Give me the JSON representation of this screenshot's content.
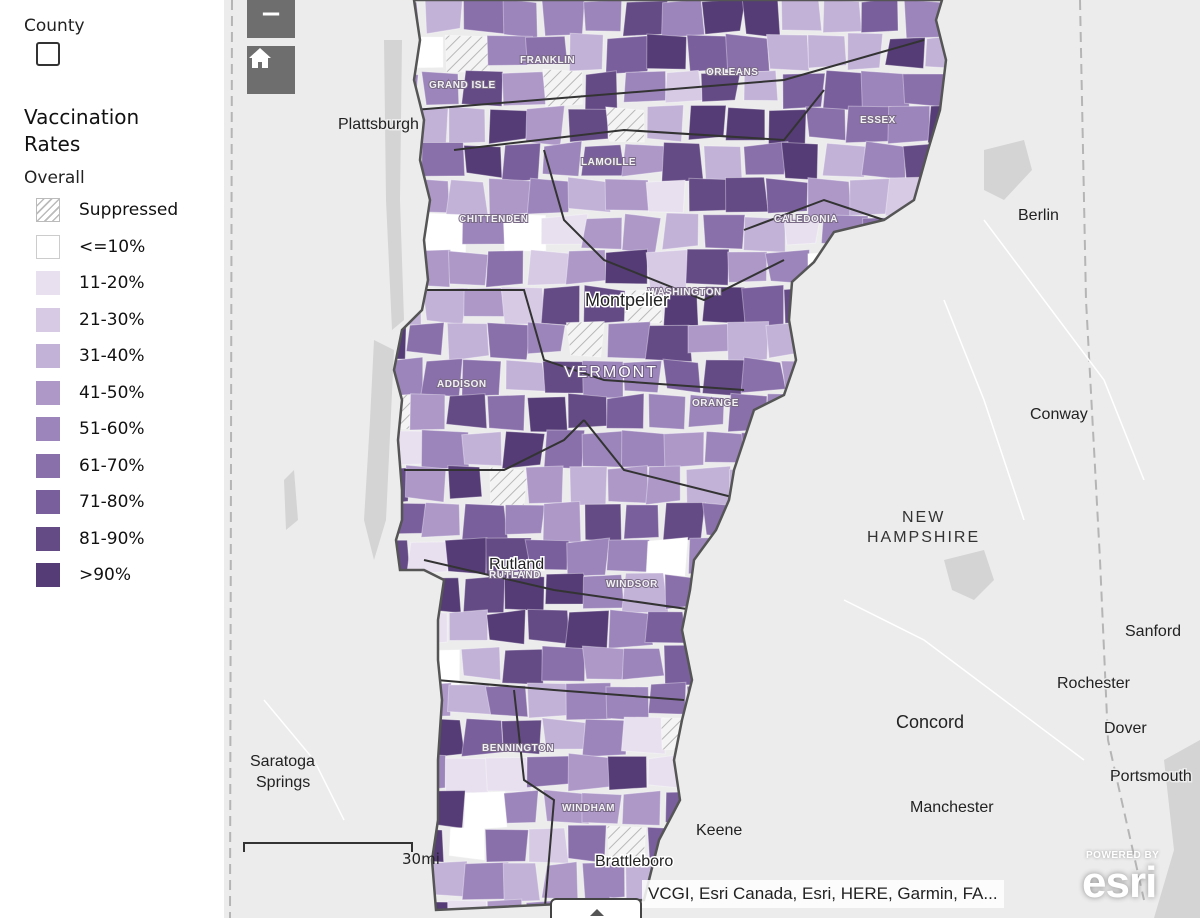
{
  "legend": {
    "layer_label": "County",
    "title": "Vaccination Rates",
    "subtitle": "Overall",
    "items": [
      {
        "label": "Suppressed",
        "color": "hatch"
      },
      {
        "label": "<=10%",
        "color": "#ffffff"
      },
      {
        "label": "11-20%",
        "color": "#e8e0ef"
      },
      {
        "label": "21-30%",
        "color": "#d6cae4"
      },
      {
        "label": "31-40%",
        "color": "#c2b2d7"
      },
      {
        "label": "41-50%",
        "color": "#ad98c8"
      },
      {
        "label": "51-60%",
        "color": "#9c85bb"
      },
      {
        "label": "61-70%",
        "color": "#8a70ab"
      },
      {
        "label": "71-80%",
        "color": "#7a5f9d"
      },
      {
        "label": "81-90%",
        "color": "#654b86"
      },
      {
        "label": ">90%",
        "color": "#553c76"
      }
    ]
  },
  "map": {
    "state_label": "VERMONT",
    "region_label": "NEW HAMPSHIRE",
    "counties": [
      "GRAND ISLE",
      "FRANKLIN",
      "ORLEANS",
      "ESSEX",
      "LAMOILLE",
      "CHITTENDEN",
      "CALEDONIA",
      "WASHINGTON",
      "ADDISON",
      "ORANGE",
      "RUTLAND",
      "WINDSOR",
      "BENNINGTON",
      "WINDHAM"
    ],
    "cities": [
      "Plattsburgh",
      "Montpelier",
      "Berlin",
      "Conway",
      "Rutland",
      "Sanford",
      "Rochester",
      "Concord",
      "Dover",
      "Saratoga Springs",
      "Portsmouth",
      "Manchester",
      "Keene",
      "Brattleboro"
    ],
    "scale_label": "30mi",
    "attribution": "VCGI, Esri Canada, Esri, HERE, Garmin, FA...",
    "powered_by": "POWERED BY",
    "logo_text": "esri"
  },
  "controls": {
    "zoom_out": "−",
    "home": "home-icon"
  }
}
